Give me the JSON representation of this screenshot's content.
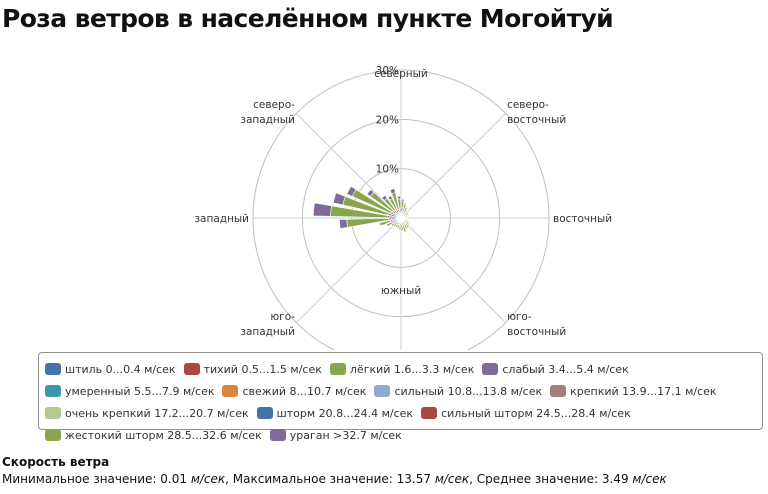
{
  "title": "Роза ветров в населённом пункте Могойтуй",
  "chart_data": {
    "type": "polar-stacked-bar",
    "title": "Роза ветров в населённом пункте Могойтуй",
    "directions": [
      "северный",
      "северо-восточный",
      "восточный",
      "юго-восточный",
      "южный",
      "юго-западный",
      "западный",
      "северо-западный"
    ],
    "direction_lines": [
      [
        "северный"
      ],
      [
        "северо-",
        "восточный"
      ],
      [
        "восточный"
      ],
      [
        "юго-",
        "восточный"
      ],
      [
        "южный"
      ],
      [
        "юго-",
        "западный"
      ],
      [
        "западный"
      ],
      [
        "северо-",
        "западный"
      ]
    ],
    "radial_ticks": [
      10,
      20,
      30
    ],
    "radial_tick_labels": [
      "10%",
      "20%",
      "30%"
    ],
    "ylim": [
      0,
      30
    ],
    "sectors_per_direction": 4,
    "series": [
      {
        "name": "штиль 0...0.4 м/сек",
        "color": "#4572A7",
        "values": [
          [
            1.2,
            1.3,
            1.5,
            1.4
          ],
          [
            1.1,
            1.0,
            0.9,
            0.8
          ],
          [
            0.7,
            0.6,
            0.6,
            0.7
          ],
          [
            0.8,
            0.9,
            1.0,
            0.9
          ],
          [
            1.0,
            0.9,
            1.1,
            1.0
          ],
          [
            1.1,
            1.2,
            1.3,
            1.5
          ],
          [
            1.7,
            2.0,
            2.3,
            2.1
          ],
          [
            1.8,
            1.5,
            1.3,
            1.2
          ]
        ]
      },
      {
        "name": "тихий 0.5...1.5 м/сек",
        "color": "#AA4643",
        "values": [
          [
            0.6,
            0.6,
            0.6,
            0.5
          ],
          [
            0.5,
            0.4,
            0.4,
            0.4
          ],
          [
            0.3,
            0.3,
            0.3,
            0.3
          ],
          [
            0.3,
            0.4,
            0.4,
            0.4
          ],
          [
            0.4,
            0.4,
            0.4,
            0.4
          ],
          [
            0.4,
            0.4,
            0.4,
            0.5
          ],
          [
            0.5,
            0.5,
            0.5,
            0.5
          ],
          [
            0.5,
            0.6,
            0.6,
            0.6
          ]
        ]
      },
      {
        "name": "лёгкий 1.6...3.3 м/сек",
        "color": "#89A54E",
        "values": [
          [
            3.5,
            2.0,
            1.4,
            1.0
          ],
          [
            0.8,
            0.6,
            0.5,
            0.5
          ],
          [
            0.4,
            0.4,
            0.3,
            0.4
          ],
          [
            0.6,
            0.8,
            1.0,
            1.2
          ],
          [
            1.5,
            1.3,
            1.0,
            0.8
          ],
          [
            0.6,
            0.6,
            0.8,
            1.2
          ],
          [
            2.2,
            8.5,
            11.5,
            9.5
          ],
          [
            8.5,
            5.5,
            3.0,
            2.5
          ]
        ]
      },
      {
        "name": "слабый 3.4...5.4 м/сек",
        "color": "#80699B",
        "values": [
          [
            0.8,
            0.5,
            0.3,
            0.2
          ],
          [
            0.1,
            0.1,
            0.1,
            0.1
          ],
          [
            0.1,
            0.1,
            0.1,
            0.1
          ],
          [
            0.1,
            0.1,
            0.1,
            0.1
          ],
          [
            0.1,
            0.1,
            0.1,
            0.1
          ],
          [
            0.1,
            0.1,
            0.1,
            0.1
          ],
          [
            0.2,
            1.5,
            3.5,
            2.0
          ],
          [
            1.2,
            0.8,
            0.7,
            0.6
          ]
        ]
      },
      {
        "name": "умеренный 5.5...7.9 м/сек",
        "color": "#3D96AE",
        "values": [
          [
            0,
            0,
            0,
            0
          ],
          [
            0,
            0,
            0,
            0
          ],
          [
            0,
            0,
            0,
            0
          ],
          [
            0,
            0,
            0,
            0
          ],
          [
            0,
            0,
            0,
            0
          ],
          [
            0,
            0,
            0,
            0
          ],
          [
            0,
            0,
            0,
            0
          ],
          [
            0,
            0,
            0,
            0
          ]
        ]
      },
      {
        "name": "свежий 8...10.7 м/сек",
        "color": "#DB843D",
        "values": [
          [
            0,
            0,
            0,
            0
          ],
          [
            0,
            0,
            0,
            0
          ],
          [
            0,
            0,
            0,
            0
          ],
          [
            0,
            0,
            0,
            0
          ],
          [
            0,
            0,
            0,
            0
          ],
          [
            0,
            0,
            0,
            0
          ],
          [
            0,
            0,
            0,
            0
          ],
          [
            0,
            0,
            0,
            0
          ]
        ]
      },
      {
        "name": "сильный 10.8...13.8 м/сек",
        "color": "#92A8CD",
        "values": [
          [
            0,
            0,
            0,
            0
          ],
          [
            0,
            0,
            0,
            0
          ],
          [
            0,
            0,
            0,
            0
          ],
          [
            0,
            0,
            0,
            0
          ],
          [
            0,
            0,
            0,
            0
          ],
          [
            0,
            0,
            0,
            0
          ],
          [
            0,
            0,
            0,
            0
          ],
          [
            0,
            0,
            0,
            0
          ]
        ]
      },
      {
        "name": "крепкий 13.9...17.1 м/сек",
        "color": "#A47D7C",
        "values": [
          [
            0,
            0,
            0,
            0
          ],
          [
            0,
            0,
            0,
            0
          ],
          [
            0,
            0,
            0,
            0
          ],
          [
            0,
            0,
            0,
            0
          ],
          [
            0,
            0,
            0,
            0
          ],
          [
            0,
            0,
            0,
            0
          ],
          [
            0,
            0,
            0,
            0
          ],
          [
            0,
            0,
            0,
            0
          ]
        ]
      },
      {
        "name": "очень крепкий 17.2...20.7 м/сек",
        "color": "#B5CA92",
        "values": [
          [
            0,
            0,
            0,
            0
          ],
          [
            0,
            0,
            0,
            0
          ],
          [
            0,
            0,
            0,
            0
          ],
          [
            0,
            0,
            0,
            0
          ],
          [
            0,
            0,
            0,
            0
          ],
          [
            0,
            0,
            0,
            0
          ],
          [
            0,
            0,
            0,
            0
          ],
          [
            0,
            0,
            0,
            0
          ]
        ]
      },
      {
        "name": "шторм 20.8...24.4 м/сек",
        "color": "#4572A7",
        "values": [
          [
            0,
            0,
            0,
            0
          ],
          [
            0,
            0,
            0,
            0
          ],
          [
            0,
            0,
            0,
            0
          ],
          [
            0,
            0,
            0,
            0
          ],
          [
            0,
            0,
            0,
            0
          ],
          [
            0,
            0,
            0,
            0
          ],
          [
            0,
            0,
            0,
            0
          ],
          [
            0,
            0,
            0,
            0
          ]
        ]
      },
      {
        "name": "сильный шторм 24.5...28.4 м/сек",
        "color": "#AA4643",
        "values": [
          [
            0,
            0,
            0,
            0
          ],
          [
            0,
            0,
            0,
            0
          ],
          [
            0,
            0,
            0,
            0
          ],
          [
            0,
            0,
            0,
            0
          ],
          [
            0,
            0,
            0,
            0
          ],
          [
            0,
            0,
            0,
            0
          ],
          [
            0,
            0,
            0,
            0
          ],
          [
            0,
            0,
            0,
            0
          ]
        ]
      },
      {
        "name": "жестокий шторм 28.5...32.6 м/сек",
        "color": "#89A54E",
        "values": [
          [
            0,
            0,
            0,
            0
          ],
          [
            0,
            0,
            0,
            0
          ],
          [
            0,
            0,
            0,
            0
          ],
          [
            0,
            0,
            0,
            0
          ],
          [
            0,
            0,
            0,
            0
          ],
          [
            0,
            0,
            0,
            0
          ],
          [
            0,
            0,
            0,
            0
          ],
          [
            0,
            0,
            0,
            0
          ]
        ]
      },
      {
        "name": "ураган >32.7 м/сек",
        "color": "#80699B",
        "values": [
          [
            0,
            0,
            0,
            0
          ],
          [
            0,
            0,
            0,
            0
          ],
          [
            0,
            0,
            0,
            0
          ],
          [
            0,
            0,
            0,
            0
          ],
          [
            0,
            0,
            0,
            0
          ],
          [
            0,
            0,
            0,
            0
          ],
          [
            0,
            0,
            0,
            0
          ],
          [
            0,
            0,
            0,
            0
          ]
        ]
      }
    ],
    "legend_position": "bottom",
    "grid": true
  },
  "stats": {
    "title": "Скорость ветра",
    "min_label": "Минимальное значение:",
    "min_value": "0.01",
    "max_label": "Максимальное значение:",
    "max_value": "13.57",
    "avg_label": "Среднее значение:",
    "avg_value": "3.49",
    "unit": "м/сек"
  },
  "colors": {
    "grid": "#c0c0c0",
    "axis": "#c0d0e0"
  }
}
